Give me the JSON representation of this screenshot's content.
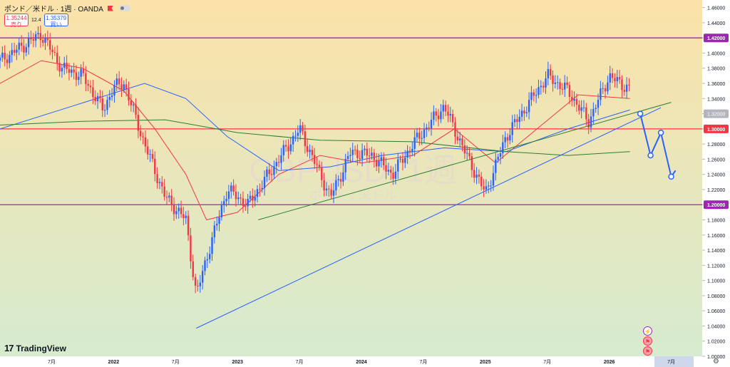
{
  "header": {
    "symbol_title": "ポンド／米ドル · 1週 · OANDA",
    "sell_price": "1.35244",
    "sell_label": "売り",
    "spread": "12.4",
    "buy_price": "1.35379",
    "buy_label": "買い"
  },
  "watermark": {
    "symbol": "GBPUSD, 1週",
    "description": "ポンド / 米ドル"
  },
  "brand": {
    "name": "TradingView"
  },
  "colors": {
    "bull": "#2962ff",
    "bear": "#f23645",
    "ma_fast": "#f23645",
    "ma_mid": "#2962ff",
    "ma_slow": "#2e7d32",
    "resistance_line": "#9c27b0",
    "mid_line": "#f23645",
    "forecast": "#2962ff",
    "bg_top": "#fbe2a8",
    "bg_bottom": "#d6ebcf"
  },
  "icons": [
    "lightning-icon",
    "flag-icon",
    "flag-icon",
    "gear-icon"
  ],
  "chart_data": {
    "type": "candlestick",
    "title": "ポンド／米ドル · 1週 · OANDA",
    "ylim": [
      1.0,
      1.47
    ],
    "y_ticks": [
      "1.46000",
      "1.44000",
      "1.42000",
      "1.40000",
      "1.38000",
      "1.36000",
      "1.34000",
      "1.32000",
      "1.30000",
      "1.28000",
      "1.26000",
      "1.24000",
      "1.22000",
      "1.20000",
      "1.18000",
      "1.16000",
      "1.14000",
      "1.12000",
      "1.10000",
      "1.08000",
      "1.06000",
      "1.04000",
      "1.02000",
      "1.00000"
    ],
    "x_ticks": [
      "7月",
      "2022",
      "7月",
      "2023",
      "7月",
      "2024",
      "7月",
      "2025",
      "7月",
      "2026",
      "7月"
    ],
    "x_tick_dates": [
      "2021-07",
      "2022-01",
      "2022-07",
      "2023-01",
      "2023-07",
      "2024-01",
      "2024-07",
      "2025-01",
      "2025-07",
      "2026-01",
      "2026-07"
    ],
    "x_range": [
      "2021-02",
      "2026-10"
    ],
    "last_candle": "2026-03",
    "horizontal_levels": [
      {
        "value": 1.42,
        "label": "1.42000",
        "color": "#9c27b0"
      },
      {
        "value": 1.3,
        "label": "1.30000",
        "color": "#f23645"
      },
      {
        "value": 1.2,
        "label": "1.20000",
        "color": "#9c27b0"
      }
    ],
    "current_price_marker": {
      "value": 1.32,
      "label": "1.32000"
    },
    "price_path": [
      {
        "date": "2021-02",
        "price": 1.39
      },
      {
        "date": "2021-06",
        "price": 1.425
      },
      {
        "date": "2021-08",
        "price": 1.38
      },
      {
        "date": "2021-10",
        "price": 1.37
      },
      {
        "date": "2021-12",
        "price": 1.325
      },
      {
        "date": "2022-01",
        "price": 1.355
      },
      {
        "date": "2022-02",
        "price": 1.36
      },
      {
        "date": "2022-04",
        "price": 1.28
      },
      {
        "date": "2022-06",
        "price": 1.21
      },
      {
        "date": "2022-08",
        "price": 1.18
      },
      {
        "date": "2022-09",
        "price": 1.08
      },
      {
        "date": "2022-10",
        "price": 1.13
      },
      {
        "date": "2022-12",
        "price": 1.22
      },
      {
        "date": "2023-02",
        "price": 1.2
      },
      {
        "date": "2023-04",
        "price": 1.24
      },
      {
        "date": "2023-07",
        "price": 1.3
      },
      {
        "date": "2023-10",
        "price": 1.21
      },
      {
        "date": "2023-12",
        "price": 1.27
      },
      {
        "date": "2024-02",
        "price": 1.265
      },
      {
        "date": "2024-04",
        "price": 1.24
      },
      {
        "date": "2024-06",
        "price": 1.28
      },
      {
        "date": "2024-09",
        "price": 1.33
      },
      {
        "date": "2024-11",
        "price": 1.27
      },
      {
        "date": "2025-01",
        "price": 1.215
      },
      {
        "date": "2025-03",
        "price": 1.29
      },
      {
        "date": "2025-05",
        "price": 1.33
      },
      {
        "date": "2025-07",
        "price": 1.37
      },
      {
        "date": "2025-09",
        "price": 1.35
      },
      {
        "date": "2025-11",
        "price": 1.31
      },
      {
        "date": "2026-01",
        "price": 1.37
      },
      {
        "date": "2026-02",
        "price": 1.36
      },
      {
        "date": "2026-03",
        "price": 1.353
      }
    ],
    "moving_averages": [
      {
        "name": "ma_fast",
        "color": "#f23645",
        "points": [
          {
            "date": "2021-02",
            "value": 1.36
          },
          {
            "date": "2021-06",
            "value": 1.39
          },
          {
            "date": "2021-10",
            "value": 1.38
          },
          {
            "date": "2022-02",
            "value": 1.35
          },
          {
            "date": "2022-05",
            "value": 1.3
          },
          {
            "date": "2022-08",
            "value": 1.24
          },
          {
            "date": "2022-10",
            "value": 1.18
          },
          {
            "date": "2023-01",
            "value": 1.19
          },
          {
            "date": "2023-05",
            "value": 1.24
          },
          {
            "date": "2023-09",
            "value": 1.265
          },
          {
            "date": "2024-01",
            "value": 1.255
          },
          {
            "date": "2024-06",
            "value": 1.265
          },
          {
            "date": "2024-10",
            "value": 1.3
          },
          {
            "date": "2025-02",
            "value": 1.255
          },
          {
            "date": "2025-06",
            "value": 1.3
          },
          {
            "date": "2025-10",
            "value": 1.345
          },
          {
            "date": "2026-03",
            "value": 1.34
          }
        ]
      },
      {
        "name": "ma_mid",
        "color": "#2962ff",
        "points": [
          {
            "date": "2021-02",
            "value": 1.3
          },
          {
            "date": "2021-09",
            "value": 1.33
          },
          {
            "date": "2022-04",
            "value": 1.36
          },
          {
            "date": "2022-08",
            "value": 1.34
          },
          {
            "date": "2022-12",
            "value": 1.29
          },
          {
            "date": "2023-05",
            "value": 1.245
          },
          {
            "date": "2023-10",
            "value": 1.25
          },
          {
            "date": "2024-03",
            "value": 1.265
          },
          {
            "date": "2024-09",
            "value": 1.275
          },
          {
            "date": "2025-03",
            "value": 1.27
          },
          {
            "date": "2025-09",
            "value": 1.3
          },
          {
            "date": "2026-03",
            "value": 1.325
          }
        ]
      },
      {
        "name": "ma_slow",
        "color": "#2e7d32",
        "points": [
          {
            "date": "2021-02",
            "value": 1.305
          },
          {
            "date": "2021-10",
            "value": 1.31
          },
          {
            "date": "2022-06",
            "value": 1.312
          },
          {
            "date": "2023-01",
            "value": 1.295
          },
          {
            "date": "2023-09",
            "value": 1.285
          },
          {
            "date": "2024-06",
            "value": 1.283
          },
          {
            "date": "2025-03",
            "value": 1.27
          },
          {
            "date": "2025-09",
            "value": 1.265
          },
          {
            "date": "2026-03",
            "value": 1.27
          }
        ]
      }
    ],
    "trendlines": [
      {
        "name": "long-trendline",
        "color": "#2962ff",
        "from": {
          "date": "2022-09",
          "value": 1.037
        },
        "to": {
          "date": "2026-06",
          "value": 1.328
        }
      },
      {
        "name": "mid-trendline",
        "color": "#2e7d32",
        "from": {
          "date": "2023-03",
          "value": 1.18
        },
        "to": {
          "date": "2026-07",
          "value": 1.335
        }
      }
    ],
    "forecast_path": [
      {
        "date": "2026-04",
        "value": 1.32
      },
      {
        "date": "2026-05",
        "value": 1.265
      },
      {
        "date": "2026-06",
        "value": 1.295
      },
      {
        "date": "2026-07",
        "value": 1.237
      },
      {
        "date": "2026-07",
        "value": 1.245
      }
    ]
  }
}
